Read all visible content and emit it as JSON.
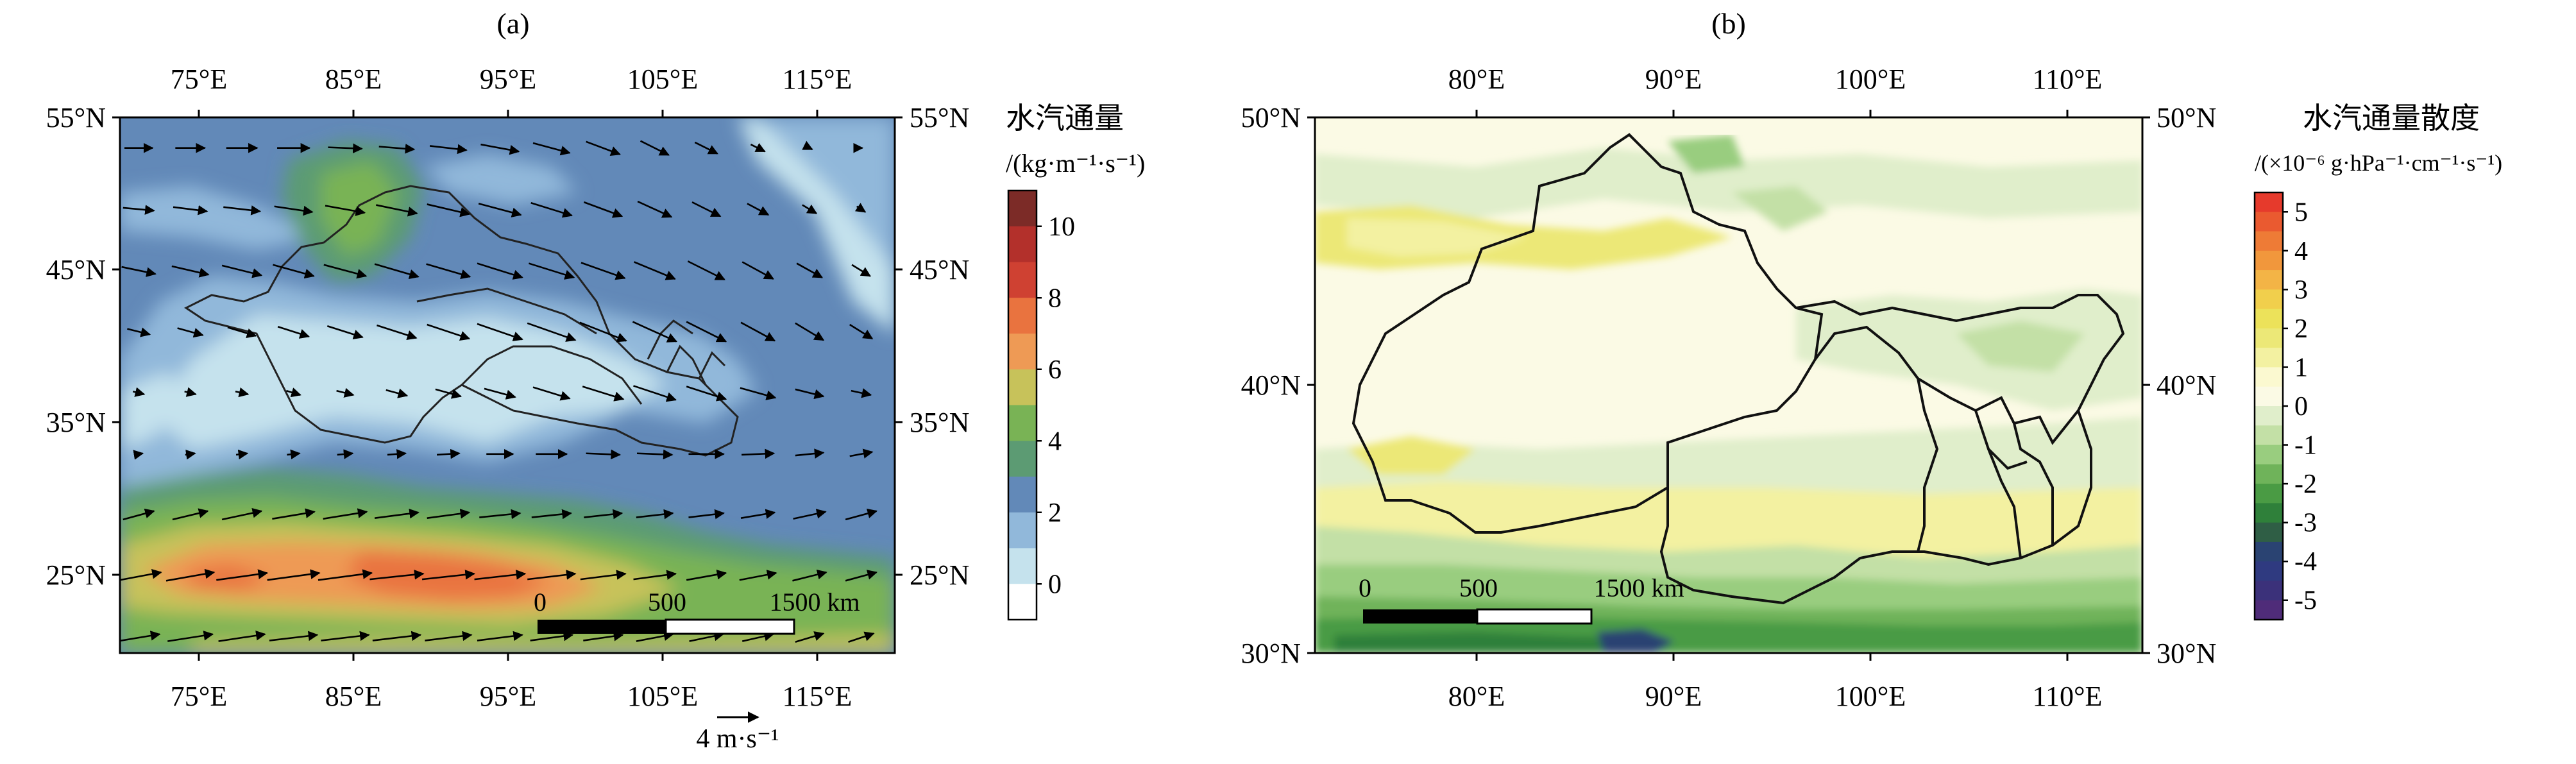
{
  "panels": {
    "a": {
      "label": "(a)",
      "cbar_title": "水汽通量",
      "cbar_unit": "/(kg·m⁻¹·s⁻¹)",
      "x_ticks": [
        "75°E",
        "85°E",
        "95°E",
        "105°E",
        "115°E"
      ],
      "y_ticks": [
        "55°N",
        "45°N",
        "35°N",
        "25°N"
      ],
      "scale_labels": [
        "0",
        "500",
        "1500 km"
      ],
      "ref_vector": "4 m·s⁻¹"
    },
    "b": {
      "label": "(b)",
      "cbar_title": "水汽通量散度",
      "cbar_unit": "/(×10⁻⁶ g·hPa⁻¹·cm⁻¹·s⁻¹)",
      "x_ticks": [
        "80°E",
        "90°E",
        "100°E",
        "110°E"
      ],
      "y_ticks": [
        "50°N",
        "40°N",
        "30°N"
      ],
      "scale_labels": [
        "0",
        "500",
        "1500 km"
      ]
    }
  },
  "chart_data": [
    {
      "type": "heatmap",
      "title": "(a)",
      "variable": "水汽通量",
      "unit": "kg·m⁻¹·s⁻¹",
      "overlay": "wind vectors",
      "xlim": [
        70,
        120
      ],
      "ylim": [
        20,
        55
      ],
      "x_ticks": [
        75,
        85,
        95,
        105,
        115
      ],
      "y_ticks": [
        25,
        35,
        45,
        55
      ],
      "colorbar": {
        "levels": [
          0,
          1,
          2,
          3,
          4,
          5,
          6,
          7,
          8,
          9,
          10,
          11
        ],
        "tick_labels": [
          "0",
          "2",
          "4",
          "6",
          "8",
          "10"
        ],
        "colors": [
          "#ffffff",
          "#c5e2ed",
          "#91b8da",
          "#6289b8",
          "#5c9b73",
          "#79b355",
          "#c7c25a",
          "#ee9a55",
          "#e9733f",
          "#cf4132",
          "#b3302b",
          "#7c2b27"
        ]
      },
      "wind_field": {
        "rows": [
          {
            "lat": 53,
            "lon_start": 70,
            "lon_step": 3.33,
            "u": [
              2.0,
              2.1,
              2.2,
              2.3,
              2.4,
              2.5,
              2.6,
              2.7,
              2.6,
              2.4,
              2.0,
              1.6,
              1.0,
              0.4,
              0.2
            ],
            "v": [
              0.0,
              0.0,
              0.0,
              0.0,
              -0.1,
              -0.2,
              -0.3,
              -0.5,
              -0.7,
              -0.9,
              -1.0,
              -0.8,
              -0.5,
              -0.2,
              0.0
            ]
          },
          {
            "lat": 49,
            "lon_start": 70,
            "lon_step": 3.33,
            "u": [
              2.2,
              2.4,
              2.6,
              2.7,
              2.8,
              2.9,
              3.0,
              3.0,
              2.9,
              2.7,
              2.4,
              2.0,
              1.5,
              1.0,
              0.6
            ],
            "v": [
              -0.2,
              -0.3,
              -0.3,
              -0.4,
              -0.5,
              -0.6,
              -0.7,
              -0.8,
              -0.9,
              -1.0,
              -1.1,
              -1.0,
              -0.8,
              -0.6,
              -0.4
            ]
          },
          {
            "lat": 45,
            "lon_start": 70,
            "lon_step": 3.33,
            "u": [
              2.4,
              2.6,
              2.8,
              2.9,
              3.0,
              3.1,
              3.1,
              3.2,
              3.2,
              3.1,
              2.9,
              2.6,
              2.2,
              1.8,
              1.3
            ],
            "v": [
              -0.5,
              -0.6,
              -0.7,
              -0.8,
              -0.8,
              -0.9,
              -0.9,
              -1.0,
              -1.0,
              -1.1,
              -1.2,
              -1.3,
              -1.2,
              -1.0,
              -0.8
            ]
          },
          {
            "lat": 41,
            "lon_start": 70,
            "lon_step": 3.33,
            "u": [
              1.6,
              1.8,
              2.0,
              2.2,
              2.5,
              2.8,
              3.0,
              3.2,
              3.4,
              3.3,
              3.1,
              2.8,
              2.4,
              2.0,
              1.6
            ],
            "v": [
              -0.4,
              -0.5,
              -0.6,
              -0.7,
              -0.8,
              -0.9,
              -1.0,
              -1.1,
              -1.2,
              -1.3,
              -1.4,
              -1.4,
              -1.3,
              -1.2,
              -1.0
            ]
          },
          {
            "lat": 37,
            "lon_start": 70,
            "lon_step": 3.33,
            "u": [
              0.8,
              0.8,
              0.9,
              1.0,
              1.2,
              1.5,
              1.8,
              2.2,
              2.6,
              2.9,
              3.0,
              2.8,
              2.5,
              2.0,
              1.4
            ],
            "v": [
              -0.2,
              -0.2,
              -0.2,
              -0.3,
              -0.3,
              -0.4,
              -0.5,
              -0.6,
              -0.8,
              -0.9,
              -1.0,
              -0.9,
              -0.7,
              -0.5,
              -0.3
            ]
          },
          {
            "lat": 33,
            "lon_start": 70,
            "lon_step": 3.33,
            "u": [
              0.6,
              0.7,
              0.8,
              0.9,
              1.1,
              1.3,
              1.6,
              1.9,
              2.2,
              2.4,
              2.5,
              2.5,
              2.3,
              2.0,
              1.6
            ],
            "v": [
              0.1,
              0.1,
              0.1,
              0.1,
              0.1,
              0.1,
              0.1,
              0.0,
              0.0,
              -0.1,
              -0.1,
              0.0,
              0.1,
              0.2,
              0.3
            ]
          },
          {
            "lat": 29,
            "lon_start": 70,
            "lon_step": 3.33,
            "u": [
              2.2,
              2.5,
              2.8,
              3.0,
              3.1,
              3.1,
              3.0,
              2.9,
              2.8,
              2.7,
              2.6,
              2.5,
              2.4,
              2.3,
              2.2
            ],
            "v": [
              0.6,
              0.6,
              0.6,
              0.5,
              0.5,
              0.4,
              0.4,
              0.3,
              0.3,
              0.3,
              0.3,
              0.3,
              0.4,
              0.5,
              0.6
            ]
          },
          {
            "lat": 25,
            "lon_start": 70,
            "lon_step": 3.33,
            "u": [
              3.2,
              3.4,
              3.6,
              3.7,
              3.8,
              3.8,
              3.7,
              3.6,
              3.4,
              3.2,
              3.0,
              2.8,
              2.6,
              2.4,
              2.2
            ],
            "v": [
              0.6,
              0.6,
              0.5,
              0.5,
              0.5,
              0.4,
              0.4,
              0.4,
              0.4,
              0.4,
              0.4,
              0.5,
              0.5,
              0.6,
              0.6
            ]
          },
          {
            "lat": 21,
            "lon_start": 70,
            "lon_step": 3.33,
            "u": [
              3.0,
              3.2,
              3.3,
              3.4,
              3.4,
              3.4,
              3.3,
              3.2,
              3.0,
              2.8,
              2.6,
              2.4,
              2.2,
              2.0,
              1.8
            ],
            "v": [
              0.5,
              0.5,
              0.5,
              0.4,
              0.4,
              0.4,
              0.4,
              0.4,
              0.4,
              0.4,
              0.5,
              0.5,
              0.5,
              0.6,
              0.6
            ]
          }
        ],
        "reference": {
          "value": 4,
          "unit": "m·s⁻¹"
        }
      },
      "scale_bar": [
        "0",
        "500",
        "1500 km"
      ]
    },
    {
      "type": "heatmap",
      "title": "(b)",
      "variable": "水汽通量散度",
      "unit": "×10⁻⁶ g·hPa⁻¹·cm⁻¹·s⁻¹",
      "xlim": [
        72,
        113
      ],
      "ylim": [
        30,
        50
      ],
      "x_ticks": [
        80,
        90,
        100,
        110
      ],
      "y_ticks": [
        30,
        40,
        50
      ],
      "colorbar": {
        "levels": [
          -5.5,
          -5,
          -4.5,
          -4,
          -3.5,
          -3,
          -2.5,
          -2,
          -1.5,
          -1,
          -0.5,
          0,
          0.5,
          1,
          1.5,
          2,
          2.5,
          3,
          3.5,
          4,
          4.5,
          5,
          5.5
        ],
        "tick_labels": [
          "5",
          "4",
          "3",
          "2",
          "1",
          "0",
          "-1",
          "-2",
          "-3",
          "-4",
          "-5"
        ],
        "colors": [
          "#e63a2c",
          "#ea5a30",
          "#ee7b36",
          "#f1973c",
          "#f3b446",
          "#f1cf4c",
          "#ece25a",
          "#ece877",
          "#f3f1a1",
          "#fbf9d0",
          "#fbfae5",
          "#e0eecb",
          "#c3e0a6",
          "#99cd7f",
          "#6fb35a",
          "#4a9b44",
          "#2f803a",
          "#2f5e45",
          "#2a4372",
          "#2f3a80",
          "#3b317a",
          "#4f2c79"
        ]
      },
      "scale_bar": [
        "0",
        "500",
        "1500 km"
      ]
    }
  ]
}
